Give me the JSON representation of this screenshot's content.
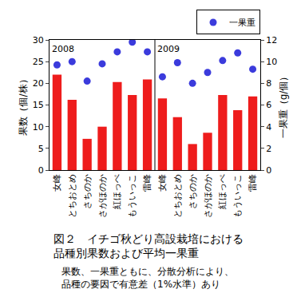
{
  "chart_data": {
    "type": "bar",
    "title": [
      "図２　イチゴ秋どり高設栽培における",
      "品種別果数および平均一果重"
    ],
    "subtitle": [
      "果数、一果重ともに、分散分析により、",
      "品種の要因で有意差（1%水準）あり"
    ],
    "categories": [
      "女峰",
      "とちおとめ",
      "さちのか",
      "さがほのか",
      "紅ほっぺ",
      "もういっこ",
      "雷峰",
      "女峰",
      "とちおとめ",
      "さちのか",
      "さがほのか",
      "紅ほっぺ",
      "もういっこ",
      "雷峰"
    ],
    "groups": [
      {
        "label": "2008",
        "size": 7
      },
      {
        "label": "2009",
        "size": 7
      }
    ],
    "ylabel": "果数（個/株）",
    "y2label": "一果重（g/個）",
    "ylim": [
      0,
      30
    ],
    "yticks": [
      0,
      5,
      10,
      15,
      20,
      25,
      30
    ],
    "y2lim": [
      0,
      12
    ],
    "y2ticks": [
      0,
      2,
      4,
      6,
      8,
      10,
      12
    ],
    "series": [
      {
        "type": "bar",
        "color": "#ee1c1c",
        "values": [
          22,
          16.2,
          7.2,
          10,
          20.3,
          17.3,
          20.9,
          16.5,
          12.2,
          6,
          8.6,
          17.3,
          13.8,
          17
        ]
      },
      {
        "name": "一果重",
        "type": "scatter",
        "marker": "circle",
        "color": "#3b3bdc",
        "axis": "y2",
        "values": [
          9.7,
          10,
          8.2,
          9.8,
          10.9,
          11.8,
          10.9,
          8.6,
          9.9,
          8.0,
          9.0,
          10.1,
          10.8,
          9.3
        ]
      }
    ],
    "legend": "top right",
    "grid": false
  }
}
